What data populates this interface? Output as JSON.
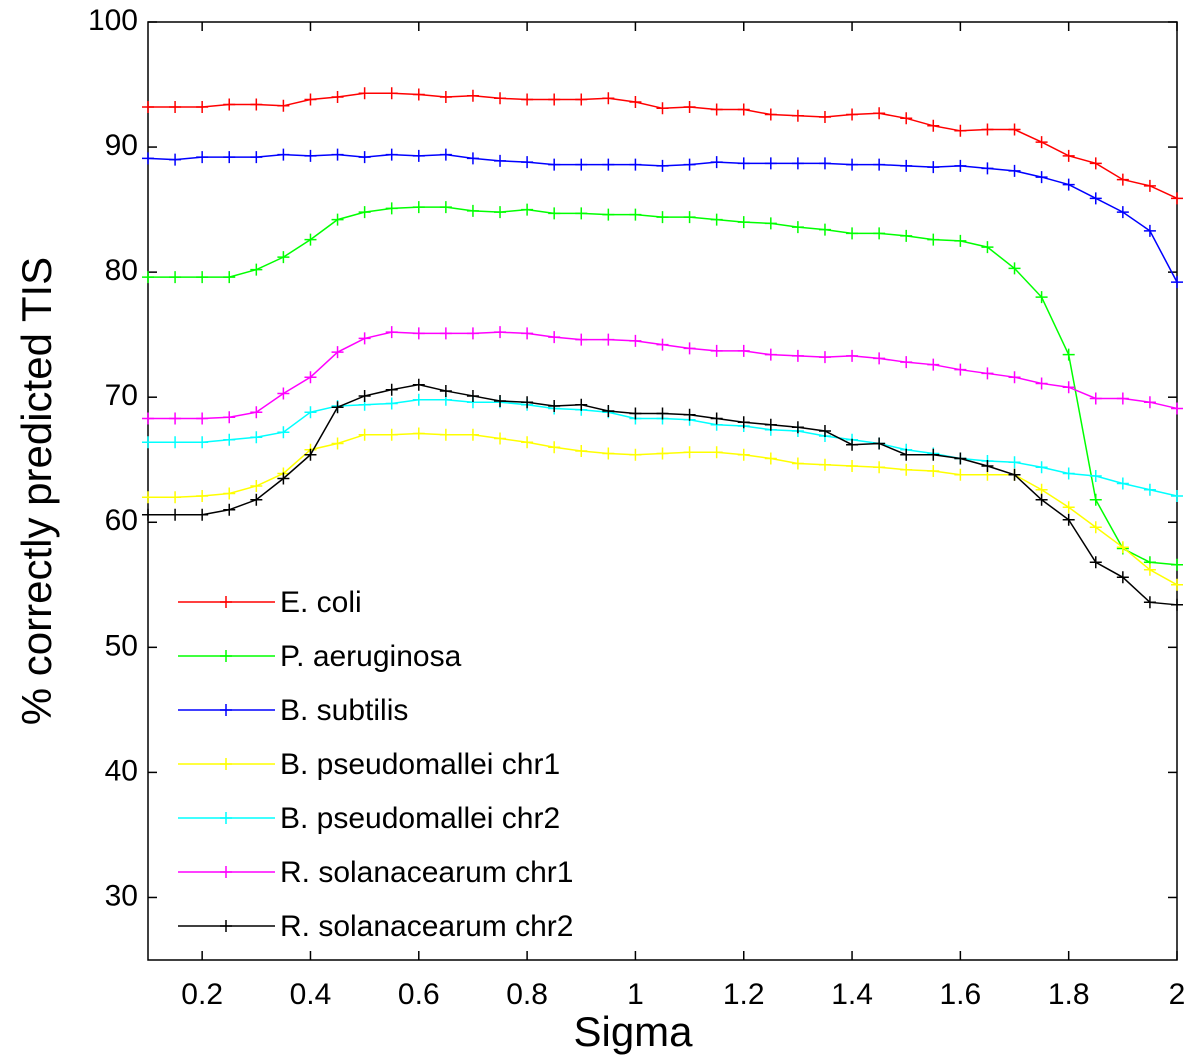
{
  "chart_data": {
    "type": "line",
    "xlabel": "Sigma",
    "ylabel": "% correctly predicted TIS",
    "x": [
      0.1,
      0.15,
      0.2,
      0.25,
      0.3,
      0.35,
      0.4,
      0.45,
      0.5,
      0.55,
      0.6,
      0.65,
      0.7,
      0.75,
      0.8,
      0.85,
      0.9,
      0.95,
      1.0,
      1.05,
      1.1,
      1.15,
      1.2,
      1.25,
      1.3,
      1.35,
      1.4,
      1.45,
      1.5,
      1.55,
      1.6,
      1.65,
      1.7,
      1.75,
      1.8,
      1.85,
      1.9,
      1.95,
      2.0
    ],
    "xlim": [
      0.1,
      2
    ],
    "xticks": [
      0.2,
      0.4,
      0.6,
      0.8,
      1,
      1.2,
      1.4,
      1.6,
      1.8,
      2
    ],
    "ylim": [
      25,
      100
    ],
    "yticks": [
      30,
      40,
      50,
      60,
      70,
      80,
      90,
      100
    ],
    "legend": "lower left",
    "series": [
      {
        "name": "E. coli",
        "color": "#ff0000",
        "values": [
          93.2,
          93.2,
          93.2,
          93.4,
          93.4,
          93.3,
          93.8,
          94.0,
          94.3,
          94.3,
          94.2,
          94.0,
          94.1,
          93.9,
          93.8,
          93.8,
          93.8,
          93.9,
          93.6,
          93.1,
          93.2,
          93.0,
          93.0,
          92.6,
          92.5,
          92.4,
          92.6,
          92.7,
          92.3,
          91.7,
          91.3,
          91.4,
          91.4,
          90.4,
          89.3,
          88.7,
          87.4,
          86.9,
          85.9
        ]
      },
      {
        "name": "P. aeruginosa",
        "color": "#00ff00",
        "values": [
          79.6,
          79.6,
          79.6,
          79.6,
          80.2,
          81.2,
          82.6,
          84.2,
          84.8,
          85.1,
          85.2,
          85.2,
          84.9,
          84.8,
          85.0,
          84.7,
          84.7,
          84.6,
          84.6,
          84.4,
          84.4,
          84.2,
          84.0,
          83.9,
          83.6,
          83.4,
          83.1,
          83.1,
          82.9,
          82.6,
          82.5,
          82.0,
          80.3,
          78.0,
          73.4,
          61.8,
          57.9,
          56.8,
          56.6
        ]
      },
      {
        "name": "B. subtilis",
        "color": "#0000ff",
        "values": [
          89.1,
          89.0,
          89.2,
          89.2,
          89.2,
          89.4,
          89.3,
          89.4,
          89.2,
          89.4,
          89.3,
          89.4,
          89.1,
          88.9,
          88.8,
          88.6,
          88.6,
          88.6,
          88.6,
          88.5,
          88.6,
          88.8,
          88.7,
          88.7,
          88.7,
          88.7,
          88.6,
          88.6,
          88.5,
          88.4,
          88.5,
          88.3,
          88.1,
          87.6,
          87.0,
          85.9,
          84.8,
          83.3,
          79.2
        ]
      },
      {
        "name": "B. pseudomallei chr1",
        "color": "#ffff00",
        "values": [
          62.0,
          62.0,
          62.1,
          62.3,
          62.9,
          63.9,
          65.8,
          66.3,
          67.0,
          67.0,
          67.1,
          67.0,
          67.0,
          66.7,
          66.4,
          66.0,
          65.7,
          65.5,
          65.4,
          65.5,
          65.6,
          65.6,
          65.4,
          65.1,
          64.7,
          64.6,
          64.5,
          64.4,
          64.2,
          64.1,
          63.8,
          63.8,
          63.8,
          62.6,
          61.2,
          59.6,
          58.0,
          56.2,
          55.0
        ]
      },
      {
        "name": "B. pseudomallei chr2",
        "color": "#00ffff",
        "values": [
          66.4,
          66.4,
          66.4,
          66.6,
          66.8,
          67.2,
          68.8,
          69.3,
          69.4,
          69.5,
          69.8,
          69.8,
          69.6,
          69.6,
          69.4,
          69.1,
          69.0,
          68.8,
          68.3,
          68.3,
          68.2,
          67.8,
          67.7,
          67.4,
          67.3,
          66.9,
          66.6,
          66.3,
          65.8,
          65.5,
          65.1,
          64.9,
          64.8,
          64.4,
          63.9,
          63.7,
          63.1,
          62.6,
          62.1
        ]
      },
      {
        "name": "R. solanacearum chr1",
        "color": "#ff00ff",
        "values": [
          68.3,
          68.3,
          68.3,
          68.4,
          68.8,
          70.3,
          71.6,
          73.6,
          74.7,
          75.2,
          75.1,
          75.1,
          75.1,
          75.2,
          75.1,
          74.8,
          74.6,
          74.6,
          74.5,
          74.2,
          73.9,
          73.7,
          73.7,
          73.4,
          73.3,
          73.2,
          73.3,
          73.1,
          72.8,
          72.6,
          72.2,
          71.9,
          71.6,
          71.1,
          70.8,
          69.9,
          69.9,
          69.6,
          69.1
        ]
      },
      {
        "name": "R. solanacearum chr2",
        "color": "#000000",
        "values": [
          60.6,
          60.6,
          60.6,
          61.0,
          61.8,
          63.5,
          65.4,
          69.2,
          70.1,
          70.6,
          71.0,
          70.5,
          70.1,
          69.7,
          69.6,
          69.3,
          69.4,
          68.9,
          68.7,
          68.7,
          68.6,
          68.3,
          68.0,
          67.8,
          67.6,
          67.3,
          66.2,
          66.3,
          65.4,
          65.4,
          65.1,
          64.5,
          63.8,
          61.8,
          60.2,
          56.8,
          55.6,
          53.6,
          53.4
        ]
      }
    ]
  }
}
